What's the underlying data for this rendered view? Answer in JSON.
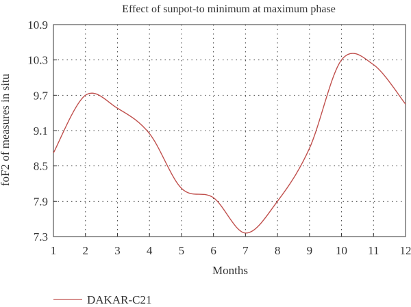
{
  "chart_data": {
    "type": "line",
    "title": "Effect of sunpot-to minimum at maximum phase",
    "xlabel": "Months",
    "ylabel": "foF2 of measures in situ",
    "xlim": [
      1,
      12
    ],
    "ylim": [
      7.3,
      10.9
    ],
    "xticks": [
      "1",
      "2",
      "3",
      "4",
      "5",
      "6",
      "7",
      "8",
      "9",
      "10",
      "11",
      "12"
    ],
    "yticks": [
      "7.3",
      "7.9",
      "8.5",
      "9.1",
      "9.7",
      "10.3",
      "10.9"
    ],
    "grid": true,
    "legend": "bottom-left",
    "series": [
      {
        "name": "DAKAR-C21",
        "color": "#c0504d",
        "x": [
          1,
          2,
          3,
          4,
          5,
          6,
          7,
          8,
          9,
          10,
          11,
          12
        ],
        "y": [
          8.72,
          9.7,
          9.48,
          9.05,
          8.12,
          7.96,
          7.36,
          7.9,
          8.8,
          10.3,
          10.22,
          9.55
        ]
      }
    ]
  }
}
